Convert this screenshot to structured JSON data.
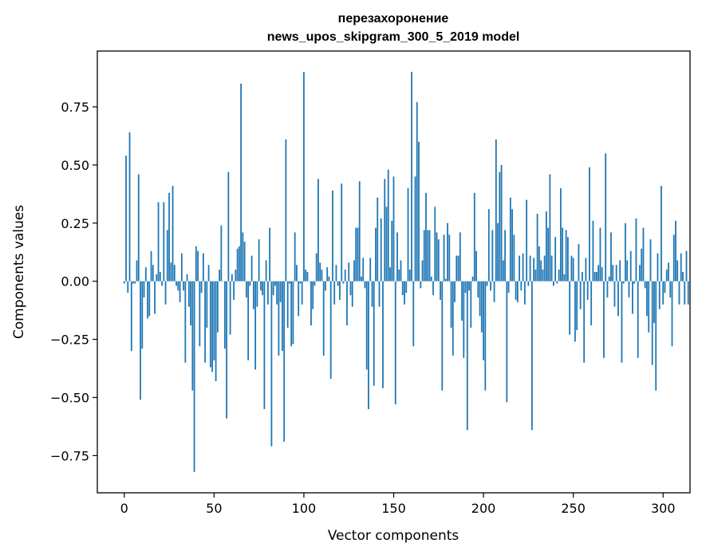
{
  "chart_data": {
    "type": "bar",
    "title_line1": "перезахоронение",
    "title_line2": "news_upos_skipgram_300_5_2019 model",
    "xlabel": "Vector components",
    "ylabel": "Components values",
    "xlim": [
      -15,
      315
    ],
    "ylim": [
      -0.91,
      0.99
    ],
    "xticks": [
      0,
      50,
      100,
      150,
      200,
      250,
      300
    ],
    "yticks": [
      -0.75,
      -0.5,
      -0.25,
      0.0,
      0.25,
      0.5,
      0.75
    ],
    "ytick_labels": [
      "−0.75",
      "−0.50",
      "−0.25",
      "0.00",
      "0.25",
      "0.50",
      "0.75"
    ],
    "bar_color": "#1f77b4",
    "values": [
      -0.01,
      0.54,
      -0.05,
      0.64,
      -0.3,
      -0.01,
      -0.01,
      0.09,
      0.46,
      -0.51,
      -0.29,
      -0.07,
      0.06,
      -0.16,
      -0.15,
      0.13,
      0.07,
      -0.14,
      0.03,
      0.34,
      0.04,
      -0.02,
      0.34,
      -0.1,
      0.22,
      0.38,
      0.08,
      0.41,
      0.07,
      -0.02,
      -0.04,
      -0.09,
      0.12,
      -0.04,
      -0.35,
      0.03,
      -0.11,
      -0.19,
      -0.47,
      -0.82,
      0.15,
      0.13,
      -0.28,
      -0.05,
      0.12,
      -0.35,
      -0.2,
      0.07,
      -0.37,
      -0.39,
      -0.34,
      -0.43,
      -0.22,
      0.05,
      0.24,
      0.0,
      -0.29,
      -0.59,
      0.47,
      -0.23,
      0.03,
      -0.08,
      0.05,
      0.14,
      0.15,
      0.85,
      0.21,
      0.17,
      -0.07,
      -0.34,
      -0.02,
      0.11,
      -0.12,
      -0.38,
      -0.11,
      0.18,
      -0.04,
      -0.06,
      -0.55,
      0.09,
      -0.1,
      0.23,
      -0.71,
      -0.06,
      -0.02,
      -0.1,
      -0.32,
      -0.09,
      -0.3,
      -0.69,
      0.61,
      -0.2,
      -0.01,
      -0.28,
      -0.27,
      0.21,
      0.07,
      -0.15,
      -0.01,
      -0.1,
      0.9,
      0.05,
      0.04,
      0.0,
      -0.19,
      -0.12,
      -0.02,
      0.12,
      0.44,
      0.08,
      0.05,
      -0.32,
      -0.04,
      0.06,
      0.02,
      -0.42,
      0.39,
      -0.1,
      0.07,
      -0.02,
      -0.08,
      0.42,
      -0.01,
      0.05,
      -0.19,
      0.08,
      -0.06,
      -0.11,
      0.09,
      0.23,
      0.23,
      0.43,
      0.02,
      0.1,
      -0.03,
      -0.38,
      -0.55,
      0.1,
      -0.11,
      -0.45,
      0.23,
      0.36,
      -0.11,
      0.27,
      -0.46,
      0.44,
      0.32,
      0.48,
      0.06,
      0.26,
      0.45,
      -0.53,
      0.21,
      0.05,
      0.09,
      -0.06,
      -0.1,
      -0.05,
      0.4,
      0.05,
      0.9,
      -0.28,
      0.45,
      0.77,
      0.6,
      -0.03,
      0.09,
      0.22,
      0.38,
      0.22,
      0.22,
      0.02,
      -0.06,
      0.32,
      0.21,
      0.18,
      -0.08,
      -0.47,
      0.2,
      0.01,
      0.25,
      0.2,
      -0.2,
      -0.32,
      -0.09,
      0.11,
      0.11,
      0.21,
      -0.17,
      -0.33,
      -0.05,
      -0.64,
      -0.04,
      -0.2,
      0.02,
      0.38,
      0.13,
      -0.07,
      -0.15,
      -0.22,
      -0.34,
      -0.47,
      -0.02,
      0.31,
      -0.04,
      0.22,
      -0.09,
      0.61,
      0.25,
      0.47,
      0.5,
      0.09,
      0.22,
      -0.52,
      -0.05,
      0.36,
      0.31,
      0.2,
      -0.08,
      -0.09,
      0.11,
      -0.04,
      0.12,
      -0.1,
      0.35,
      -0.02,
      0.11,
      -0.64,
      0.1,
      0.05,
      0.29,
      0.15,
      0.09,
      0.05,
      0.11,
      0.3,
      0.23,
      0.46,
      0.11,
      -0.02,
      0.19,
      -0.01,
      0.05,
      0.4,
      0.23,
      0.03,
      0.22,
      0.19,
      -0.23,
      0.11,
      0.1,
      -0.26,
      -0.21,
      0.16,
      -0.12,
      0.04,
      -0.35,
      0.1,
      -0.08,
      0.49,
      -0.19,
      0.26,
      0.04,
      0.04,
      0.07,
      0.23,
      0.06,
      -0.33,
      0.55,
      -0.07,
      0.02,
      0.21,
      0.07,
      -0.11,
      0.07,
      -0.15,
      0.09,
      -0.35,
      -0.01,
      0.25,
      0.09,
      -0.07,
      0.13,
      -0.14,
      -0.01,
      0.27,
      -0.33,
      0.07,
      0.14,
      0.23,
      -0.03,
      -0.15,
      -0.22,
      0.18,
      -0.36,
      -0.18,
      -0.47,
      0.12,
      -0.12,
      0.41,
      -0.1,
      -0.05,
      0.05,
      0.08,
      -0.07,
      -0.28,
      0.2,
      0.26,
      0.09,
      -0.1,
      0.12,
      0.04,
      -0.1,
      0.13,
      -0.1
    ]
  }
}
